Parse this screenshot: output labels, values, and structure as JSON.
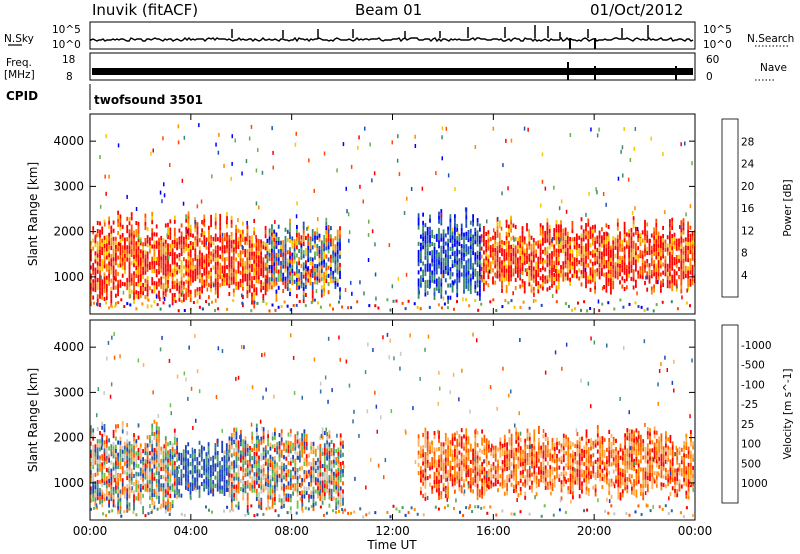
{
  "header": {
    "station": "Inuvik (fitACF)",
    "beam": "Beam 01",
    "date": "01/Oct/2012"
  },
  "strip": {
    "nsky_label": "N.Sky",
    "nsearch_label": "N.Search",
    "freq_label_1": "Freq.",
    "freq_label_2": "[MHz]",
    "nave_label": "Nave",
    "cpid_label": "CPID",
    "cpid_value": "twofsound 3501",
    "noise_ticks_left": [
      "10^5",
      "10^0"
    ],
    "noise_ticks_right": [
      "10^5",
      "10^0"
    ],
    "freq_ticks_left": [
      "18",
      "8"
    ],
    "nave_ticks_right": [
      "60",
      "0"
    ]
  },
  "chart_data": [
    {
      "type": "heatmap",
      "title": "",
      "xlabel": "Time UT",
      "ylabel": "Slant Range [km]",
      "x_ticks": [
        "00:00",
        "04:00",
        "08:00",
        "12:00",
        "16:00",
        "20:00",
        "00:00"
      ],
      "y_ticks": [
        1000,
        2000,
        3000,
        4000
      ],
      "xlim": [
        0,
        24
      ],
      "ylim": [
        180,
        4600
      ],
      "colorbar": {
        "label": "Power [dB]",
        "ticks": [
          "4",
          "8",
          "12",
          "16",
          "20",
          "24",
          "28"
        ],
        "colors": [
          "#0000ff",
          "#1d4fbf",
          "#3a8a6a",
          "#6ab04c",
          "#f5c800",
          "#ff8a00",
          "#ff4a00",
          "#ff0000"
        ]
      },
      "regions": [
        {
          "t0": 0.0,
          "t1": 7.0,
          "r0": 300,
          "r1": 2400,
          "level": "high"
        },
        {
          "t0": 7.0,
          "t1": 9.9,
          "r0": 400,
          "r1": 2300,
          "level": "mixed"
        },
        {
          "t0": 13.0,
          "t1": 15.5,
          "r0": 400,
          "r1": 2500,
          "level": "low"
        },
        {
          "t0": 15.5,
          "t1": 24.0,
          "r0": 600,
          "r1": 2300,
          "level": "high"
        }
      ]
    },
    {
      "type": "heatmap",
      "title": "",
      "xlabel": "Time UT",
      "ylabel": "Slant Range [km]",
      "x_ticks": [
        "00:00",
        "04:00",
        "08:00",
        "12:00",
        "16:00",
        "20:00",
        "00:00"
      ],
      "y_ticks": [
        1000,
        2000,
        3000,
        4000
      ],
      "xlim": [
        0,
        24
      ],
      "ylim": [
        180,
        4600
      ],
      "colorbar": {
        "label": "Velocity [m s^-1]",
        "ticks": [
          "1000",
          "500",
          "100",
          "25",
          "-25",
          "-100",
          "-500",
          "-1000"
        ],
        "colors": [
          "#1d3fbf",
          "#2f6fa0",
          "#4a9a6a",
          "#6cc24a",
          "#c8c8c8",
          "#ffb060",
          "#ff8a00",
          "#ff5a00",
          "#ff0000"
        ]
      },
      "regions": [
        {
          "t0": 0.0,
          "t1": 3.5,
          "r0": 300,
          "r1": 2400,
          "level": "mixed"
        },
        {
          "t0": 3.5,
          "t1": 5.5,
          "r0": 600,
          "r1": 1900,
          "level": "positive"
        },
        {
          "t0": 5.5,
          "t1": 10.0,
          "r0": 300,
          "r1": 2300,
          "level": "mixed"
        },
        {
          "t0": 13.0,
          "t1": 24.0,
          "r0": 600,
          "r1": 2200,
          "level": "negative"
        }
      ]
    }
  ]
}
